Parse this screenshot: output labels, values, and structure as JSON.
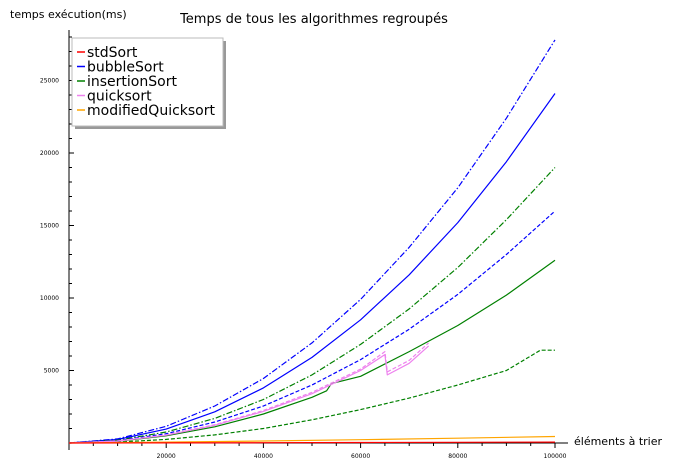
{
  "chart_data": {
    "type": "line",
    "title": "Temps de tous les algorithmes regroupés",
    "xlabel": "éléments à trier",
    "ylabel": "temps exécution(ms)",
    "xlim": [
      0,
      100000
    ],
    "ylim": [
      0,
      28000
    ],
    "xticks": [
      20000,
      40000,
      60000,
      80000,
      100000
    ],
    "yticks": [
      5000,
      10000,
      15000,
      20000,
      25000
    ],
    "grid": false,
    "legend": {
      "placement": "top-left",
      "entries": [
        {
          "label": "stdSort",
          "color": "#ff0000"
        },
        {
          "label": "bubbleSort",
          "color": "#0000ff"
        },
        {
          "label": "insertionSort",
          "color": "#008000"
        },
        {
          "label": "quicksort",
          "color": "#ee82ee"
        },
        {
          "label": "modifiedQuicksort",
          "color": "#ffa500"
        }
      ]
    },
    "series": [
      {
        "algo": "bubbleSort",
        "color": "#0000ff",
        "dash": "dashdot",
        "x": [
          0,
          10000,
          20000,
          30000,
          40000,
          50000,
          60000,
          70000,
          80000,
          90000,
          100000
        ],
        "y": [
          0,
          280,
          1150,
          2550,
          4450,
          6900,
          9900,
          13500,
          17600,
          22400,
          27800
        ]
      },
      {
        "algo": "bubbleSort",
        "color": "#0000ff",
        "dash": "solid",
        "x": [
          0,
          10000,
          20000,
          30000,
          40000,
          50000,
          60000,
          70000,
          80000,
          90000,
          100000
        ],
        "y": [
          0,
          240,
          960,
          2150,
          3800,
          5900,
          8500,
          11600,
          15200,
          19400,
          24100
        ]
      },
      {
        "algo": "insertionSort",
        "color": "#008000",
        "dash": "dashdot",
        "x": [
          0,
          10000,
          20000,
          30000,
          40000,
          50000,
          60000,
          70000,
          80000,
          90000,
          100000
        ],
        "y": [
          0,
          190,
          760,
          1700,
          3000,
          4700,
          6800,
          9250,
          12100,
          15400,
          19000
        ]
      },
      {
        "algo": "bubbleSort",
        "color": "#0000ff",
        "dash": "dashed",
        "x": [
          0,
          10000,
          20000,
          30000,
          40000,
          50000,
          60000,
          70000,
          80000,
          90000,
          100000
        ],
        "y": [
          0,
          160,
          640,
          1450,
          2550,
          4000,
          5750,
          7850,
          10250,
          13000,
          16000
        ]
      },
      {
        "algo": "insertionSort",
        "color": "#008000",
        "dash": "solid",
        "x": [
          0,
          10000,
          20000,
          30000,
          40000,
          50000,
          53000,
          54000,
          60000,
          70000,
          80000,
          90000,
          100000
        ],
        "y": [
          0,
          120,
          500,
          1120,
          2000,
          3150,
          3600,
          4100,
          4600,
          6300,
          8100,
          10200,
          12600
        ]
      },
      {
        "algo": "insertionSort",
        "color": "#008000",
        "dash": "dashed",
        "x": [
          0,
          10000,
          20000,
          30000,
          40000,
          50000,
          60000,
          70000,
          80000,
          90000,
          97000,
          100000
        ],
        "y": [
          0,
          60,
          250,
          560,
          1000,
          1600,
          2300,
          3100,
          4000,
          5000,
          6400,
          6400
        ]
      },
      {
        "algo": "quicksort",
        "color": "#ee82ee",
        "dash": "solid",
        "x": [
          0,
          10000,
          20000,
          30000,
          40000,
          50000,
          60000,
          65000,
          65500,
          70000,
          74000
        ],
        "y": [
          0,
          130,
          540,
          1220,
          2180,
          3400,
          5000,
          6100,
          4700,
          5500,
          6700
        ]
      },
      {
        "algo": "quicksort",
        "color": "#ee82ee",
        "dash": "dashed",
        "x": [
          0,
          10000,
          20000,
          30000,
          40000,
          50000,
          60000,
          65000,
          65500,
          70000,
          74000
        ],
        "y": [
          0,
          140,
          560,
          1260,
          2240,
          3500,
          5100,
          6300,
          4900,
          5700,
          6900
        ]
      },
      {
        "algo": "modifiedQuicksort",
        "color": "#ffa500",
        "dash": "solid",
        "x": [
          0,
          20000,
          40000,
          60000,
          80000,
          100000
        ],
        "y": [
          0,
          60,
          140,
          230,
          330,
          450
        ]
      },
      {
        "algo": "stdSort",
        "color": "#ff0000",
        "dash": "solid",
        "x": [
          0,
          20000,
          40000,
          60000,
          80000,
          100000
        ],
        "y": [
          0,
          10,
          22,
          35,
          48,
          60
        ]
      }
    ]
  }
}
